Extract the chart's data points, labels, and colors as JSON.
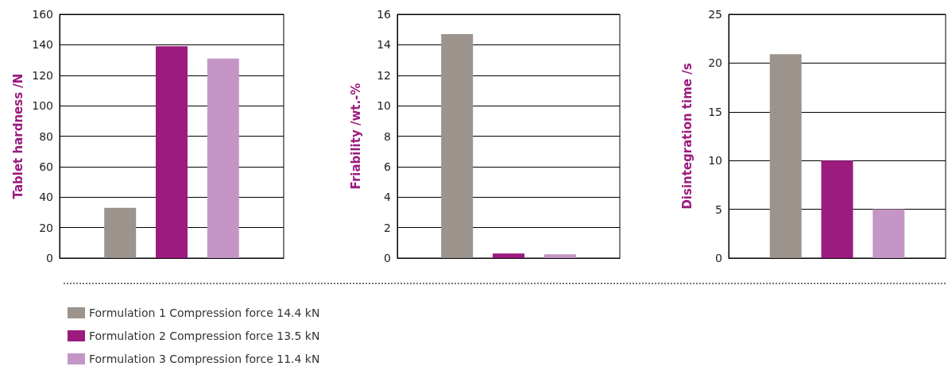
{
  "chart_data": [
    {
      "type": "bar",
      "ylabel": "Tablet hardness /N",
      "categories": [
        null
      ],
      "ylim": [
        0,
        160
      ],
      "yticks": [
        0,
        20,
        40,
        60,
        80,
        100,
        120,
        140,
        160
      ],
      "grid": "y",
      "legend": "bottom",
      "series": [
        {
          "name": "Formulation 1 Compression force 14.4 kN",
          "color": "#9b938c",
          "values": [
            33
          ]
        },
        {
          "name": "Formulation 2 Compression force 13.5 kN",
          "color": "#9b1b7e",
          "values": [
            139
          ]
        },
        {
          "name": "Formulation 3 Compression force 11.4 kN",
          "color": "#c496c6",
          "values": [
            131
          ]
        }
      ]
    },
    {
      "type": "bar",
      "ylabel": "Friability /wt.-%",
      "categories": [
        null
      ],
      "ylim": [
        0,
        16
      ],
      "yticks": [
        0,
        2,
        4,
        6,
        8,
        10,
        12,
        14,
        16
      ],
      "grid": "y",
      "series": [
        {
          "color": "#9b938c",
          "values": [
            14.7
          ]
        },
        {
          "color": "#9b1b7e",
          "values": [
            0.3
          ]
        },
        {
          "color": "#c496c6",
          "values": [
            0.25
          ]
        }
      ]
    },
    {
      "type": "bar",
      "ylabel": "Disintegration time /s",
      "categories": [
        null
      ],
      "ylim": [
        0,
        25
      ],
      "yticks": [
        0,
        5,
        10,
        15,
        20,
        25
      ],
      "grid": "y",
      "series": [
        {
          "color": "#9b938c",
          "values": [
            20.9
          ]
        },
        {
          "color": "#9b1b7e",
          "values": [
            10
          ]
        },
        {
          "color": "#c496c6",
          "values": [
            5
          ]
        }
      ]
    }
  ]
}
